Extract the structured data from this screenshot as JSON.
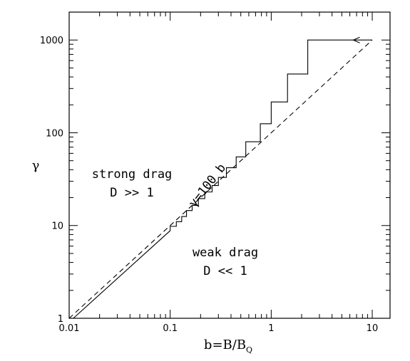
{
  "chart_data": {
    "type": "line",
    "x_scale": "log",
    "y_scale": "log",
    "xlim": [
      0.01,
      15
    ],
    "ylim": [
      1,
      2000
    ],
    "xlabel": "b=B/B",
    "xlabel_sub": "Q",
    "ylabel": "γ",
    "x_ticks": [
      {
        "value": 0.01,
        "label": "0.01"
      },
      {
        "value": 0.1,
        "label": "0.1"
      },
      {
        "value": 1,
        "label": "1"
      },
      {
        "value": 10,
        "label": "10"
      }
    ],
    "y_ticks": [
      {
        "value": 1,
        "label": "1"
      },
      {
        "value": 10,
        "label": "10"
      },
      {
        "value": 100,
        "label": "100"
      },
      {
        "value": 1000,
        "label": "1000"
      }
    ],
    "series": [
      {
        "style": "dashed",
        "label": "γ=100 b",
        "x": [
          0.01,
          10
        ],
        "y": [
          1,
          1000
        ]
      },
      {
        "style": "solid",
        "x": [
          10,
          2.3,
          2.3,
          1.45,
          1.45,
          1.0,
          1.0,
          0.78,
          0.78,
          0.56,
          0.56,
          0.45,
          0.45,
          0.36,
          0.36,
          0.3,
          0.3,
          0.26,
          0.26,
          0.22,
          0.22,
          0.19,
          0.19,
          0.165,
          0.165,
          0.145,
          0.145,
          0.13,
          0.13,
          0.115,
          0.115,
          0.1,
          0.1,
          0.011
        ],
        "y": [
          1000,
          1000,
          430,
          430,
          215,
          215,
          125,
          125,
          80,
          80,
          55,
          55,
          42,
          42,
          33,
          33,
          27,
          27,
          23,
          23,
          19.5,
          19.5,
          16.5,
          16.5,
          14.5,
          14.5,
          12.5,
          12.5,
          11,
          11,
          9.8,
          9.8,
          8.8,
          1
        ]
      }
    ],
    "annotations": {
      "strong": {
        "line1": "strong drag",
        "line2": "D >> 1"
      },
      "weak": {
        "line1": "weak drag",
        "line2": "D << 1"
      },
      "dashed_label": "γ=100 b"
    }
  }
}
